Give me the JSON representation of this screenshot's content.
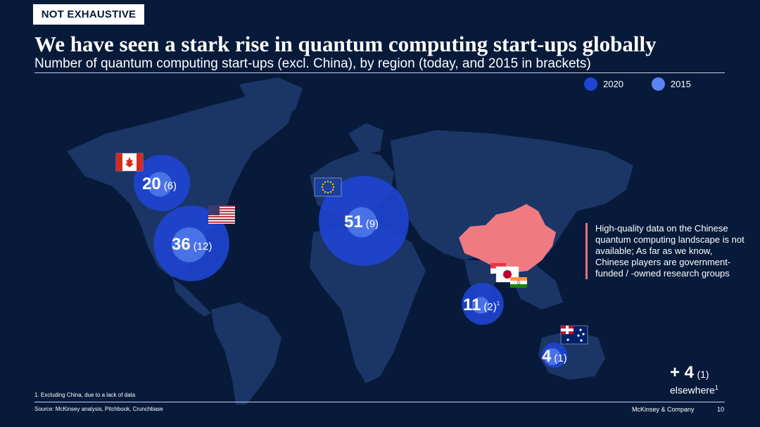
{
  "tag": "NOT EXHAUSTIVE",
  "title": "We have seen a stark rise in quantum computing start-ups globally",
  "subtitle": "Number of quantum computing start-ups (excl. China), by region (today, and 2015 in brackets)",
  "colors": {
    "background": "#071a3a",
    "land": "#1b3566",
    "bubble_2020": "#1f45d6",
    "bubble_2015": "#5a82f2",
    "china": "#f07a82",
    "note_bar": "#e8707a"
  },
  "chart_data": {
    "type": "bubble-map",
    "title": "Number of quantum computing start-ups (excl. China), by region (today, and 2015 in brackets)",
    "legend": {
      "placement": "top-right",
      "items": [
        {
          "label": "2020",
          "color": "#1f45d6"
        },
        {
          "label": "2015",
          "color": "#5a82f2"
        }
      ]
    },
    "regions": [
      {
        "flag": "canada-flag",
        "value_2020": 20,
        "value_2015": 6,
        "label_2020": "20",
        "label_2015": "(6)",
        "footnote": ""
      },
      {
        "flag": "usa-flag",
        "value_2020": 36,
        "value_2015": 12,
        "label_2020": "36",
        "label_2015": "(12)",
        "footnote": ""
      },
      {
        "flag": "eu-flag",
        "value_2020": 51,
        "value_2015": 9,
        "label_2020": "51",
        "label_2015": "(9)",
        "footnote": ""
      },
      {
        "flag": "singapore-japan-india-flags",
        "value_2020": 11,
        "value_2015": 2,
        "label_2020": "11",
        "label_2015": "(2)",
        "footnote": "1"
      },
      {
        "flag": "australia-flag",
        "value_2020": 4,
        "value_2015": 1,
        "label_2020": "4",
        "label_2015": "(1)",
        "footnote": ""
      }
    ],
    "elsewhere": {
      "value_2020": 4,
      "value_2015": 1,
      "label_2020": "+ 4",
      "label_2015": "(1)",
      "label": "elsewhere",
      "footnote": "1"
    }
  },
  "china_note": "High-quality data on the Chinese quantum computing landscape is not available; As far as we know, Chinese players are government-funded / -owned research groups",
  "footnote": "1.   Excluding China, due to a lack of data",
  "source": "Source: McKinsey analysis, Pitchbook, Crunchbase",
  "brand": "McKinsey & Company",
  "page_number": "10"
}
